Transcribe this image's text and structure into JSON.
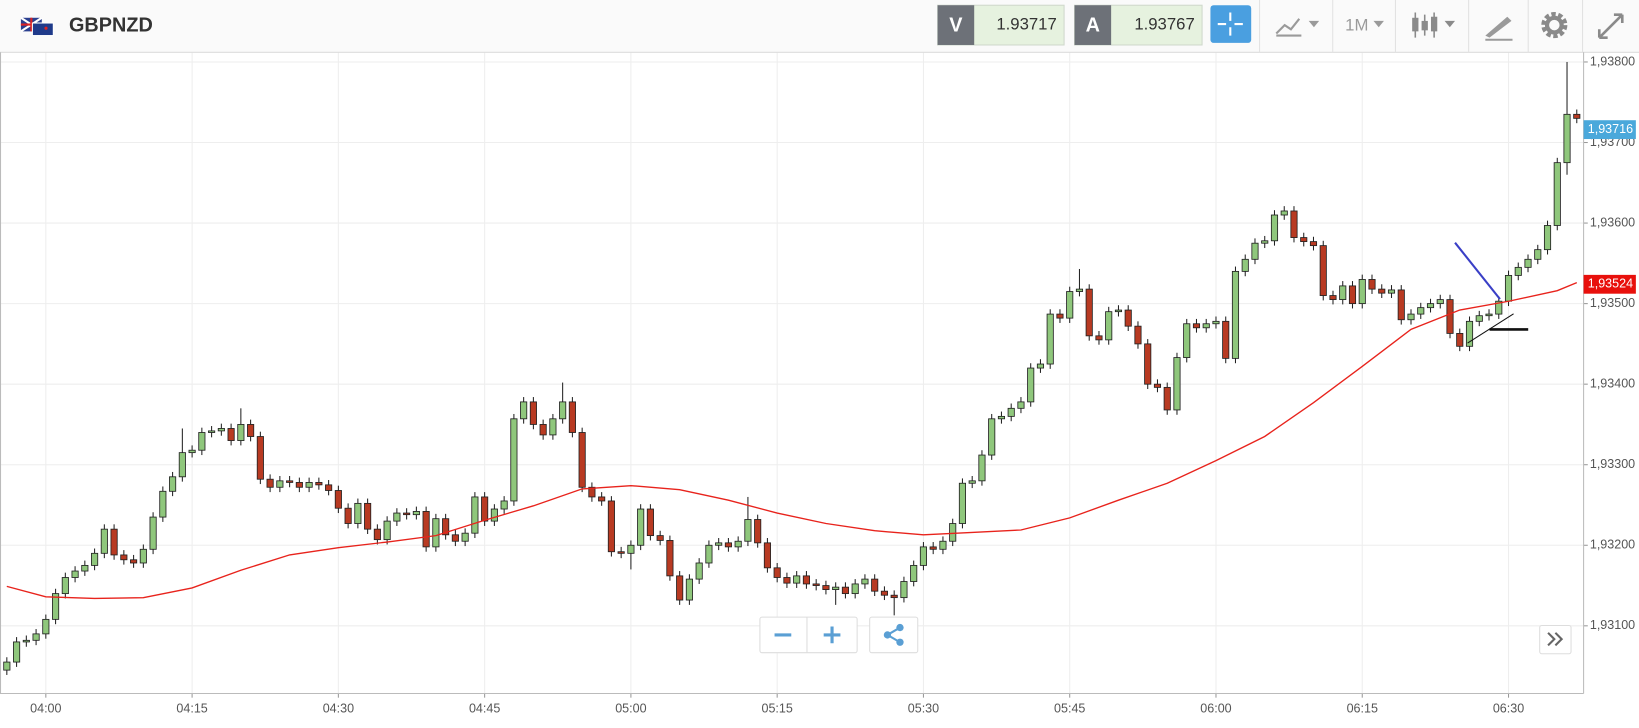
{
  "toolbar": {
    "symbol": "GBPNZD",
    "bid_label": "V",
    "bid": "1.93717",
    "ask_label": "A",
    "ask": "1.93767",
    "timeframe": "1M"
  },
  "chart_data": {
    "type": "candlestick",
    "up_color": "#8fc77c",
    "down_color": "#b83a22",
    "x": [
      -4,
      -3,
      -2,
      -1,
      0,
      1,
      2,
      3,
      4,
      5,
      6,
      7,
      8,
      9,
      10,
      11,
      12,
      13,
      14,
      15,
      16,
      17,
      18,
      19,
      20,
      21,
      22,
      23,
      24,
      25,
      26,
      27,
      28,
      29,
      30,
      31,
      32,
      33,
      34,
      35,
      36,
      37,
      38,
      39,
      40,
      41,
      42,
      43,
      44,
      45,
      46,
      47,
      48,
      49,
      50,
      51,
      52,
      53,
      54,
      55,
      56,
      57,
      58,
      59,
      60,
      61,
      62,
      63,
      64,
      65,
      66,
      67,
      68,
      69,
      70,
      71,
      72,
      73,
      74,
      75,
      76,
      77,
      78,
      79,
      80,
      81,
      82,
      83,
      84,
      85,
      86,
      87,
      88,
      89,
      90,
      91,
      92,
      93,
      94,
      95,
      96,
      97,
      98,
      99,
      100,
      101,
      102,
      103,
      104,
      105,
      106,
      107,
      108,
      109,
      110,
      111,
      112,
      113,
      114,
      115,
      116,
      117,
      118,
      119,
      120,
      121,
      122,
      123,
      124,
      125,
      126,
      127,
      128,
      129,
      130,
      131,
      132,
      133,
      134,
      135,
      136,
      137,
      138,
      139,
      140,
      141,
      142,
      143,
      144,
      145,
      146,
      147,
      148,
      149,
      150,
      151,
      152,
      153,
      154,
      155,
      156,
      157
    ],
    "open": [
      1.93045,
      1.93055,
      1.9308,
      1.93082,
      1.9309,
      1.93108,
      1.9314,
      1.9316,
      1.93168,
      1.93175,
      1.9319,
      1.9322,
      1.93188,
      1.93182,
      1.93178,
      1.93195,
      1.93235,
      1.93267,
      1.93285,
      1.93315,
      1.93318,
      1.9334,
      1.93342,
      1.93345,
      1.9333,
      1.9335,
      1.93335,
      1.93282,
      1.93272,
      1.9328,
      1.93278,
      1.93272,
      1.93278,
      1.93275,
      1.93268,
      1.93246,
      1.93227,
      1.93252,
      1.9322,
      1.93207,
      1.9323,
      1.9324,
      1.93238,
      1.93242,
      1.93198,
      1.93233,
      1.93213,
      1.93205,
      1.93215,
      1.9326,
      1.9323,
      1.93245,
      1.93255,
      1.93357,
      1.93378,
      1.9335,
      1.93337,
      1.93357,
      1.93378,
      1.9334,
      1.93272,
      1.9326,
      1.93255,
      1.93192,
      1.9319,
      1.932,
      1.93245,
      1.93212,
      1.93206,
      1.93162,
      1.93132,
      1.93158,
      1.93178,
      1.932,
      1.93203,
      1.93198,
      1.93205,
      1.93232,
      1.93203,
      1.93172,
      1.9316,
      1.93153,
      1.93162,
      1.93152,
      1.9315,
      1.93145,
      1.93148,
      1.9314,
      1.93152,
      1.93158,
      1.93143,
      1.93138,
      1.93135,
      1.93155,
      1.93175,
      1.93198,
      1.93195,
      1.93205,
      1.93227,
      1.93277,
      1.9328,
      1.93312,
      1.93357,
      1.9336,
      1.9337,
      1.93378,
      1.9342,
      1.93425,
      1.93487,
      1.93482,
      1.93515,
      1.93518,
      1.9346,
      1.93455,
      1.9349,
      1.93492,
      1.93472,
      1.9345,
      1.934,
      1.93396,
      1.93368,
      1.93433,
      1.93475,
      1.9347,
      1.93475,
      1.93478,
      1.93432,
      1.9354,
      1.93555,
      1.93575,
      1.93578,
      1.9361,
      1.93615,
      1.93582,
      1.93577,
      1.93572,
      1.9351,
      1.93505,
      1.93522,
      1.935,
      1.9353,
      1.93518,
      1.93513,
      1.93517,
      1.9348,
      1.93487,
      1.93495,
      1.935,
      1.93505,
      1.93463,
      1.93447,
      1.93478,
      1.93485,
      1.93487,
      1.93503,
      1.93535,
      1.93545,
      1.93555,
      1.93567,
      1.93597,
      1.93675,
      1.93735
    ],
    "high": [
      1.93061,
      1.93086,
      1.93088,
      1.93096,
      1.93114,
      1.93146,
      1.93166,
      1.93174,
      1.93181,
      1.93196,
      1.93226,
      1.93226,
      1.93194,
      1.93188,
      1.93201,
      1.93241,
      1.93273,
      1.93291,
      1.93345,
      1.93324,
      1.93346,
      1.93348,
      1.93351,
      1.93351,
      1.9337,
      1.93356,
      1.93341,
      1.93288,
      1.93286,
      1.93286,
      1.93284,
      1.93284,
      1.93284,
      1.93281,
      1.93274,
      1.93252,
      1.93258,
      1.93258,
      1.93226,
      1.93236,
      1.93246,
      1.93246,
      1.93248,
      1.93248,
      1.93239,
      1.93239,
      1.93219,
      1.93221,
      1.93266,
      1.93266,
      1.93251,
      1.93261,
      1.93363,
      1.93384,
      1.93384,
      1.93356,
      1.93363,
      1.93402,
      1.93384,
      1.93346,
      1.93278,
      1.93266,
      1.93261,
      1.93198,
      1.93206,
      1.93251,
      1.93251,
      1.93218,
      1.93212,
      1.93168,
      1.93164,
      1.93184,
      1.93206,
      1.93209,
      1.93209,
      1.93211,
      1.9326,
      1.93238,
      1.93209,
      1.93178,
      1.93166,
      1.93168,
      1.93168,
      1.93158,
      1.93156,
      1.93154,
      1.93154,
      1.93158,
      1.93164,
      1.93164,
      1.93149,
      1.93144,
      1.93161,
      1.93181,
      1.93204,
      1.93204,
      1.93211,
      1.93233,
      1.93283,
      1.93286,
      1.93318,
      1.93363,
      1.93366,
      1.93376,
      1.93384,
      1.93426,
      1.93431,
      1.93493,
      1.93493,
      1.93521,
      1.93543,
      1.93524,
      1.93466,
      1.93496,
      1.93498,
      1.93498,
      1.93478,
      1.93456,
      1.93406,
      1.93402,
      1.93439,
      1.93481,
      1.93481,
      1.93481,
      1.93484,
      1.93484,
      1.93546,
      1.93561,
      1.93581,
      1.93584,
      1.93616,
      1.93621,
      1.93621,
      1.93588,
      1.93583,
      1.93578,
      1.93516,
      1.93528,
      1.93528,
      1.93536,
      1.93536,
      1.93524,
      1.93523,
      1.93523,
      1.93493,
      1.93501,
      1.93506,
      1.93511,
      1.93511,
      1.93469,
      1.93484,
      1.93491,
      1.93493,
      1.93509,
      1.93541,
      1.93551,
      1.93561,
      1.93573,
      1.93603,
      1.93681,
      1.938,
      1.93741
    ],
    "low": [
      1.93039,
      1.93049,
      1.93074,
      1.93076,
      1.93084,
      1.93102,
      1.93134,
      1.93154,
      1.93162,
      1.93169,
      1.93184,
      1.93182,
      1.93176,
      1.93172,
      1.93172,
      1.93189,
      1.93229,
      1.93261,
      1.93279,
      1.93309,
      1.93312,
      1.93334,
      1.93336,
      1.93324,
      1.93324,
      1.93329,
      1.93276,
      1.93266,
      1.93266,
      1.93272,
      1.93266,
      1.93266,
      1.93269,
      1.93262,
      1.9324,
      1.93221,
      1.93221,
      1.93214,
      1.93201,
      1.93201,
      1.93224,
      1.93232,
      1.93232,
      1.93192,
      1.93192,
      1.93207,
      1.93199,
      1.93199,
      1.93209,
      1.93224,
      1.93224,
      1.93239,
      1.93249,
      1.93351,
      1.93344,
      1.93331,
      1.93331,
      1.93351,
      1.93334,
      1.93266,
      1.93254,
      1.93249,
      1.93186,
      1.93184,
      1.9317,
      1.93194,
      1.93206,
      1.932,
      1.93156,
      1.93126,
      1.93126,
      1.93152,
      1.93172,
      1.93194,
      1.93192,
      1.93192,
      1.93199,
      1.93197,
      1.93166,
      1.93154,
      1.93147,
      1.93147,
      1.93146,
      1.93144,
      1.93139,
      1.93126,
      1.93134,
      1.93134,
      1.93146,
      1.93137,
      1.93132,
      1.93113,
      1.93129,
      1.93149,
      1.93169,
      1.93189,
      1.93189,
      1.93199,
      1.93221,
      1.93271,
      1.93274,
      1.93306,
      1.93351,
      1.93354,
      1.93364,
      1.93372,
      1.93414,
      1.93419,
      1.93476,
      1.93476,
      1.93509,
      1.93454,
      1.93449,
      1.93449,
      1.93484,
      1.93466,
      1.93444,
      1.93394,
      1.9339,
      1.93362,
      1.93362,
      1.93427,
      1.93464,
      1.93464,
      1.93469,
      1.93426,
      1.93426,
      1.93534,
      1.93549,
      1.93569,
      1.93572,
      1.93604,
      1.93576,
      1.93571,
      1.93566,
      1.93504,
      1.93499,
      1.93499,
      1.93494,
      1.93494,
      1.93512,
      1.93507,
      1.93507,
      1.93474,
      1.93474,
      1.93481,
      1.93489,
      1.93494,
      1.93457,
      1.93441,
      1.93441,
      1.93472,
      1.93479,
      1.93481,
      1.93497,
      1.93529,
      1.93539,
      1.93549,
      1.93561,
      1.93591,
      1.9366,
      1.93724
    ],
    "close": [
      1.93055,
      1.9308,
      1.93082,
      1.9309,
      1.93108,
      1.9314,
      1.9316,
      1.93168,
      1.93175,
      1.9319,
      1.9322,
      1.93188,
      1.93182,
      1.93178,
      1.93195,
      1.93235,
      1.93267,
      1.93285,
      1.93315,
      1.93318,
      1.9334,
      1.93342,
      1.93345,
      1.9333,
      1.9335,
      1.93335,
      1.93282,
      1.93272,
      1.9328,
      1.93278,
      1.93272,
      1.93278,
      1.93275,
      1.93268,
      1.93246,
      1.93227,
      1.93252,
      1.9322,
      1.93207,
      1.9323,
      1.9324,
      1.93238,
      1.93242,
      1.93198,
      1.93233,
      1.93213,
      1.93205,
      1.93215,
      1.9326,
      1.9323,
      1.93245,
      1.93255,
      1.93357,
      1.93378,
      1.9335,
      1.93337,
      1.93357,
      1.93378,
      1.9334,
      1.93272,
      1.9326,
      1.93255,
      1.93192,
      1.9319,
      1.932,
      1.93245,
      1.93212,
      1.93206,
      1.93162,
      1.93132,
      1.93158,
      1.93178,
      1.932,
      1.93203,
      1.93198,
      1.93205,
      1.93232,
      1.93203,
      1.93172,
      1.9316,
      1.93153,
      1.93162,
      1.93152,
      1.9315,
      1.93145,
      1.93148,
      1.9314,
      1.93152,
      1.93158,
      1.93143,
      1.93138,
      1.93135,
      1.93155,
      1.93175,
      1.93198,
      1.93195,
      1.93205,
      1.93227,
      1.93277,
      1.9328,
      1.93312,
      1.93357,
      1.9336,
      1.9337,
      1.93378,
      1.9342,
      1.93425,
      1.93487,
      1.93482,
      1.93515,
      1.93518,
      1.9346,
      1.93455,
      1.9349,
      1.93492,
      1.93472,
      1.9345,
      1.934,
      1.93396,
      1.93368,
      1.93433,
      1.93475,
      1.9347,
      1.93475,
      1.93478,
      1.93432,
      1.9354,
      1.93555,
      1.93575,
      1.93578,
      1.9361,
      1.93615,
      1.93582,
      1.93577,
      1.93572,
      1.9351,
      1.93505,
      1.93522,
      1.935,
      1.9353,
      1.93518,
      1.93513,
      1.93517,
      1.9348,
      1.93487,
      1.93495,
      1.935,
      1.93505,
      1.93463,
      1.93447,
      1.93478,
      1.93485,
      1.93487,
      1.93503,
      1.93535,
      1.93545,
      1.93555,
      1.93567,
      1.93597,
      1.93675,
      1.93735,
      1.9373
    ],
    "ma": {
      "color": "#e8231c",
      "x": [
        -4,
        0,
        5,
        10,
        15,
        20,
        25,
        30,
        35,
        40,
        45,
        50,
        55,
        60,
        65,
        70,
        75,
        80,
        85,
        90,
        95,
        100,
        105,
        110,
        115,
        120,
        125,
        130,
        135,
        140,
        145,
        150,
        155,
        157
      ],
      "values": [
        1.93149,
        1.93136,
        1.93134,
        1.93135,
        1.93147,
        1.93169,
        1.93188,
        1.93197,
        1.93204,
        1.93212,
        1.93231,
        1.93249,
        1.9327,
        1.93274,
        1.93269,
        1.93256,
        1.9324,
        1.93227,
        1.93218,
        1.93213,
        1.93216,
        1.93219,
        1.93234,
        1.93256,
        1.93277,
        1.93305,
        1.93335,
        1.93377,
        1.93422,
        1.93468,
        1.93492,
        1.93503,
        1.93516,
        1.93526
      ]
    },
    "price_labels": [
      {
        "value": 1.93716,
        "label": "1,93716",
        "color": "#4aa8db"
      },
      {
        "value": 1.93524,
        "label": "1,93524",
        "color": "#e8100c"
      }
    ],
    "xlim": [
      -4.7,
      157.7
    ],
    "xticks": [
      {
        "value": 0,
        "label": "04:00"
      },
      {
        "value": 15,
        "label": "04:15"
      },
      {
        "value": 30,
        "label": "04:30"
      },
      {
        "value": 45,
        "label": "04:45"
      },
      {
        "value": 60,
        "label": "05:00"
      },
      {
        "value": 75,
        "label": "05:15"
      },
      {
        "value": 90,
        "label": "05:30"
      },
      {
        "value": 105,
        "label": "05:45"
      },
      {
        "value": 120,
        "label": "06:00"
      },
      {
        "value": 135,
        "label": "06:15"
      },
      {
        "value": 150,
        "label": "06:30"
      }
    ],
    "ylim": [
      1.93016,
      1.93812
    ],
    "yticks": [
      {
        "value": 1.931,
        "label": "1,93100"
      },
      {
        "value": 1.932,
        "label": "1,93200"
      },
      {
        "value": 1.933,
        "label": "1,93300"
      },
      {
        "value": 1.934,
        "label": "1,93400"
      },
      {
        "value": 1.935,
        "label": "1,93500"
      },
      {
        "value": 1.936,
        "label": "1,93600"
      },
      {
        "value": 1.937,
        "label": "1,93700"
      },
      {
        "value": 1.938,
        "label": "1,93800"
      }
    ],
    "grid": true
  }
}
